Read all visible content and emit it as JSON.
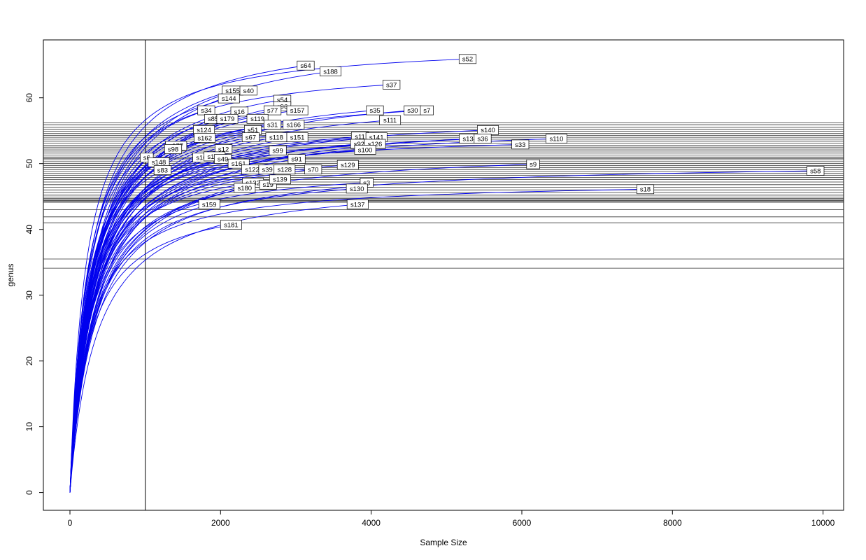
{
  "chart_data": {
    "type": "line",
    "title": "",
    "xlabel": "Sample Size",
    "ylabel": "genus",
    "xlim": [
      -353,
      10273
    ],
    "ylim": [
      -2.7,
      68.8
    ],
    "x_ticks": [
      0,
      2000,
      4000,
      6000,
      8000,
      10000
    ],
    "y_ticks": [
      0,
      10,
      20,
      30,
      40,
      50,
      60
    ],
    "grid": false,
    "legend": "none",
    "curve_color": "#0000EE",
    "hline_color": "#333333",
    "vline_x": 1000,
    "hlines_y": [
      56.2,
      55.9,
      55.5,
      55.2,
      54.9,
      54.6,
      54.3,
      54.0,
      53.7,
      53.4,
      53.1,
      52.8,
      52.5,
      52.2,
      51.9,
      51.6,
      51.3,
      51.0,
      50.8,
      50.6,
      50.3,
      50.0,
      49.7,
      49.4,
      49.1,
      48.8,
      48.5,
      48.2,
      47.9,
      47.6,
      47.2,
      46.8,
      46.4,
      46.0,
      45.6,
      45.2,
      44.9,
      44.7,
      44.5,
      44.4,
      44.3,
      44.1,
      43.0,
      41.9,
      41.0,
      35.5,
      34.1
    ],
    "samples": [
      {
        "label": "s52",
        "x": 5280,
        "y": 65.9
      },
      {
        "label": "s64",
        "x": 3130,
        "y": 64.9
      },
      {
        "label": "s188",
        "x": 3460,
        "y": 64.0
      },
      {
        "label": "s37",
        "x": 4270,
        "y": 62.0
      },
      {
        "label": "s155",
        "x": 2160,
        "y": 61.1
      },
      {
        "label": "s40",
        "x": 2370,
        "y": 61.1
      },
      {
        "label": "s144",
        "x": 2110,
        "y": 59.9
      },
      {
        "label": "s54",
        "x": 2820,
        "y": 59.7
      },
      {
        "label": "s96",
        "x": 2820,
        "y": 58.7
      },
      {
        "label": "s34",
        "x": 1810,
        "y": 58.1
      },
      {
        "label": "s16",
        "x": 2250,
        "y": 57.9
      },
      {
        "label": "s77",
        "x": 2690,
        "y": 58.1
      },
      {
        "label": "s157",
        "x": 3020,
        "y": 58.1
      },
      {
        "label": "s35",
        "x": 4050,
        "y": 58.1
      },
      {
        "label": "s30",
        "x": 4550,
        "y": 58.1
      },
      {
        "label": "s7",
        "x": 4740,
        "y": 58.1
      },
      {
        "label": "s85",
        "x": 1900,
        "y": 56.8
      },
      {
        "label": "s179",
        "x": 2090,
        "y": 56.8
      },
      {
        "label": "s119",
        "x": 2490,
        "y": 56.8
      },
      {
        "label": "s111",
        "x": 4250,
        "y": 56.6
      },
      {
        "label": "s31",
        "x": 2690,
        "y": 55.9
      },
      {
        "label": "s166",
        "x": 2970,
        "y": 55.9
      },
      {
        "label": "s124",
        "x": 1780,
        "y": 55.1
      },
      {
        "label": "s51",
        "x": 2430,
        "y": 55.1
      },
      {
        "label": "s140",
        "x": 5550,
        "y": 55.1
      },
      {
        "label": "s162",
        "x": 1790,
        "y": 53.9
      },
      {
        "label": "s67",
        "x": 2400,
        "y": 54.0
      },
      {
        "label": "s118",
        "x": 2740,
        "y": 54.0
      },
      {
        "label": "s151",
        "x": 3020,
        "y": 54.0
      },
      {
        "label": "s11",
        "x": 3850,
        "y": 54.1
      },
      {
        "label": "s141",
        "x": 4070,
        "y": 54.0
      },
      {
        "label": "s134",
        "x": 5310,
        "y": 53.8
      },
      {
        "label": "s36",
        "x": 5480,
        "y": 53.8
      },
      {
        "label": "s110",
        "x": 6460,
        "y": 53.8
      },
      {
        "label": "s33",
        "x": 5980,
        "y": 52.9
      },
      {
        "label": "s177",
        "x": 1410,
        "y": 52.7
      },
      {
        "label": "s92",
        "x": 3840,
        "y": 53.0
      },
      {
        "label": "s126",
        "x": 4050,
        "y": 53.0
      },
      {
        "label": "s98",
        "x": 1370,
        "y": 52.2
      },
      {
        "label": "s12",
        "x": 2040,
        "y": 52.2
      },
      {
        "label": "s99",
        "x": 2760,
        "y": 52.0
      },
      {
        "label": "s100",
        "x": 3920,
        "y": 52.1
      },
      {
        "label": "s6",
        "x": 1020,
        "y": 50.9
      },
      {
        "label": "s148",
        "x": 1180,
        "y": 50.2
      },
      {
        "label": "s102",
        "x": 1770,
        "y": 50.9
      },
      {
        "label": "s156",
        "x": 1920,
        "y": 51.1
      },
      {
        "label": "s49",
        "x": 2030,
        "y": 50.7
      },
      {
        "label": "s161",
        "x": 2240,
        "y": 50.0
      },
      {
        "label": "s91",
        "x": 3010,
        "y": 50.7
      },
      {
        "label": "s129",
        "x": 3690,
        "y": 49.8
      },
      {
        "label": "s9",
        "x": 6150,
        "y": 49.9
      },
      {
        "label": "s83",
        "x": 1230,
        "y": 49.0
      },
      {
        "label": "s122",
        "x": 2420,
        "y": 49.1
      },
      {
        "label": "s39",
        "x": 2620,
        "y": 49.1
      },
      {
        "label": "s128",
        "x": 2850,
        "y": 49.1
      },
      {
        "label": "s70",
        "x": 3230,
        "y": 49.1
      },
      {
        "label": "s58",
        "x": 9900,
        "y": 48.9
      },
      {
        "label": "s132",
        "x": 2430,
        "y": 47.1
      },
      {
        "label": "s19",
        "x": 2630,
        "y": 46.8
      },
      {
        "label": "s139",
        "x": 2790,
        "y": 47.6
      },
      {
        "label": "s3",
        "x": 3940,
        "y": 47.1
      },
      {
        "label": "s130",
        "x": 3810,
        "y": 46.2
      },
      {
        "label": "s180",
        "x": 2320,
        "y": 46.3
      },
      {
        "label": "s18",
        "x": 7640,
        "y": 46.1
      },
      {
        "label": "s159",
        "x": 1850,
        "y": 43.8
      },
      {
        "label": "s137",
        "x": 3820,
        "y": 43.8
      },
      {
        "label": "s181",
        "x": 2140,
        "y": 40.7
      }
    ]
  }
}
